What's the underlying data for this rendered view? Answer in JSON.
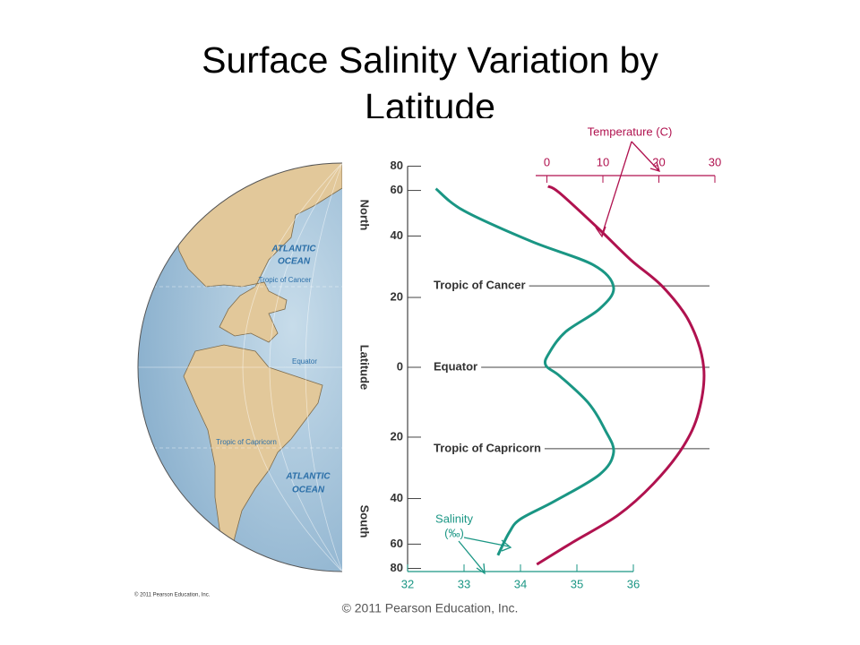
{
  "title": [
    "Surface Salinity Variation by",
    "Latitude"
  ],
  "map": {
    "labels": [
      "ATLANTIC",
      "OCEAN",
      "Tropic of Cancer",
      "Equator",
      "Tropic of Capricorn",
      "ATLANTIC",
      "OCEAN"
    ]
  },
  "figure_credit": "© 2011 Pearson Education, Inc.",
  "footer": "© 2011 Pearson Education, Inc.",
  "chart_data": {
    "type": "line",
    "lat_labels": [
      "North",
      "Latitude",
      "South"
    ],
    "temperature_label": "Temperature (C)",
    "salinity_label": [
      "Salinity",
      "(‰)"
    ],
    "ylim": [
      -80,
      80
    ],
    "y_scale": "sine",
    "yticks": [
      80,
      60,
      40,
      20,
      0,
      {
        "value": -20,
        "label": "20"
      },
      {
        "value": -40,
        "label": "40"
      },
      {
        "value": -60,
        "label": "60"
      },
      {
        "value": -80,
        "label": "80"
      }
    ],
    "xlim_top": [
      -2,
      30
    ],
    "xticks_top": [
      0,
      10,
      20,
      30
    ],
    "xlim_bottom": [
      32,
      36
    ],
    "xticks_bottom": [
      32,
      33,
      34,
      35,
      36
    ],
    "reference_lines": [
      {
        "label": "Tropic of Cancer",
        "value": 23.5
      },
      {
        "label": "Equator",
        "value": 0
      },
      {
        "label": "Tropic of Capricorn",
        "value": -23.5
      }
    ],
    "series": [
      {
        "name": "Salinity",
        "color": "#1a9684",
        "axis": "bottom",
        "latitudes": [
          61,
          50,
          38,
          30,
          23,
          16.6,
          10,
          3.8,
          0.5,
          -2.5,
          -10,
          -17.9,
          -24.6,
          -31.7,
          -41,
          -48,
          -54,
          -67
        ],
        "values": [
          32.5,
          33.0,
          34.2,
          35.3,
          35.65,
          35.4,
          34.8,
          34.5,
          34.45,
          34.7,
          35.2,
          35.5,
          35.65,
          35.4,
          34.6,
          34.0,
          33.8,
          33.6
        ]
      },
      {
        "name": "Temperature",
        "color": "#b0124f",
        "axis": "top",
        "latitudes": [
          62.4,
          58.8,
          42.8,
          31.7,
          23.2,
          12.7,
          0,
          -12.7,
          -23.2,
          -34.8,
          -46.4,
          -58.8,
          -74.8
        ],
        "values": [
          0.2,
          2.2,
          9.2,
          15,
          20.7,
          25.5,
          28,
          27.1,
          24.2,
          19,
          12.7,
          4.7,
          -1.8
        ]
      }
    ]
  }
}
